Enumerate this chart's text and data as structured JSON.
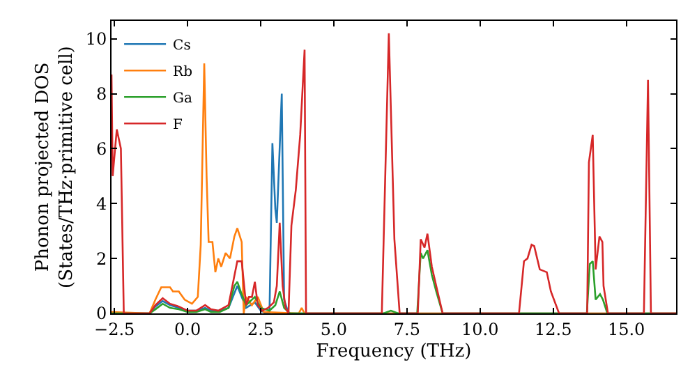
{
  "chart_data": {
    "type": "line",
    "xlabel": "Frequency (THz)",
    "ylabel": "Phonon projected DOS\n(States/THz·primitive cell)",
    "xlim": [
      -2.6,
      16.7
    ],
    "ylim": [
      0,
      10.65
    ],
    "xticks": [
      {
        "value": -2.5,
        "label": "−2.5"
      },
      {
        "value": 0,
        "label": "0.0"
      },
      {
        "value": 2.5,
        "label": "2.5"
      },
      {
        "value": 5,
        "label": "5.0"
      },
      {
        "value": 7.5,
        "label": "7.5"
      },
      {
        "value": 10,
        "label": "10.0"
      },
      {
        "value": 12.5,
        "label": "12.5"
      },
      {
        "value": 15,
        "label": "15.0"
      }
    ],
    "yticks": [
      0,
      2,
      4,
      6,
      8,
      10
    ],
    "grid": false,
    "legend": "top left",
    "marker": "none",
    "line_style": "solid",
    "series": [
      {
        "name": "Cs",
        "color": "#1f77b4",
        "x": [
          -2.6,
          -1.3,
          -1.1,
          -0.85,
          -0.6,
          -0.3,
          0.0,
          0.3,
          0.6,
          0.8,
          1.1,
          1.4,
          1.7,
          1.85,
          2.0,
          2.3,
          2.5,
          2.7,
          2.8,
          2.9,
          3.0,
          3.05,
          3.22,
          3.3,
          3.45,
          16.7
        ],
        "values": [
          0,
          0,
          0.25,
          0.45,
          0.3,
          0.2,
          0.1,
          0.1,
          0.2,
          0.1,
          0.1,
          0.2,
          1.0,
          0.6,
          0.2,
          0.4,
          0.1,
          0,
          0,
          6.2,
          3.8,
          3.3,
          8.0,
          0.5,
          0,
          0
        ]
      },
      {
        "name": "Rb",
        "color": "#ff7f0e",
        "x": [
          -2.6,
          -1.3,
          -1.1,
          -0.9,
          -0.6,
          -0.5,
          -0.3,
          -0.1,
          0.15,
          0.35,
          0.45,
          0.57,
          0.65,
          0.72,
          0.85,
          0.95,
          1.05,
          1.15,
          1.3,
          1.45,
          1.6,
          1.7,
          1.85,
          1.92,
          2.0,
          2.2,
          2.4,
          2.6,
          3.8,
          3.9,
          4.0,
          16.7
        ],
        "values": [
          0.05,
          0,
          0.5,
          0.95,
          0.95,
          0.8,
          0.8,
          0.5,
          0.35,
          0.6,
          2.5,
          9.1,
          5.0,
          2.6,
          2.6,
          1.5,
          2.0,
          1.7,
          2.2,
          2.0,
          2.8,
          3.1,
          2.6,
          0,
          0.6,
          0.3,
          0.6,
          0.05,
          0,
          0.2,
          0,
          0
        ]
      },
      {
        "name": "Ga",
        "color": "#2ca02c",
        "x": [
          -2.6,
          -1.3,
          -1.1,
          -0.85,
          -0.6,
          -0.3,
          0.0,
          0.3,
          0.6,
          0.8,
          1.1,
          1.4,
          1.6,
          1.7,
          1.85,
          2.0,
          2.3,
          2.5,
          2.8,
          3.0,
          3.15,
          3.3,
          3.5,
          6.7,
          6.95,
          7.2,
          7.85,
          7.97,
          8.05,
          8.2,
          8.35,
          8.5,
          8.72,
          13.65,
          13.75,
          13.85,
          13.95,
          14.1,
          14.2,
          14.35,
          16.7
        ],
        "values": [
          0,
          0,
          0.15,
          0.35,
          0.2,
          0.15,
          0.05,
          0.05,
          0.15,
          0.05,
          0.05,
          0.2,
          1.0,
          1.15,
          0.7,
          0.3,
          0.6,
          0.2,
          0.1,
          0.3,
          0.8,
          0.2,
          0,
          0,
          0.1,
          0,
          0,
          2.2,
          2.0,
          2.3,
          1.4,
          0.8,
          0,
          0,
          1.8,
          1.9,
          0.5,
          0.7,
          0.5,
          0,
          0
        ]
      },
      {
        "name": "F",
        "color": "#d62728",
        "x": [
          -2.6,
          -2.56,
          -2.42,
          -2.28,
          -2.18,
          -1.3,
          -1.1,
          -0.85,
          -0.6,
          -0.3,
          0.0,
          0.3,
          0.6,
          0.8,
          1.05,
          1.4,
          1.7,
          1.85,
          2.0,
          2.1,
          2.2,
          2.3,
          2.4,
          2.55,
          2.75,
          2.95,
          3.05,
          3.15,
          3.25,
          3.35,
          3.45,
          3.55,
          3.7,
          3.85,
          4.0,
          4.05,
          6.64,
          6.88,
          7.07,
          7.25,
          7.87,
          7.97,
          8.1,
          8.2,
          8.35,
          8.5,
          8.72,
          11.33,
          11.5,
          11.62,
          11.76,
          11.85,
          12.04,
          12.28,
          12.42,
          12.7,
          13.66,
          13.72,
          13.85,
          13.95,
          14.08,
          14.18,
          14.22,
          14.37,
          15.6,
          15.74,
          15.84,
          16.7
        ],
        "values": [
          8.7,
          5.0,
          6.7,
          6.0,
          0,
          0,
          0.3,
          0.55,
          0.35,
          0.25,
          0.1,
          0.1,
          0.3,
          0.15,
          0.1,
          0.3,
          1.9,
          1.9,
          0.3,
          0.6,
          0.6,
          1.15,
          0.3,
          0.1,
          0.2,
          0.4,
          1.0,
          3.3,
          1.0,
          0.2,
          0,
          3.2,
          4.5,
          6.5,
          9.6,
          0,
          0,
          10.2,
          2.7,
          0,
          0,
          2.7,
          2.4,
          2.9,
          1.7,
          1.0,
          0,
          0,
          1.9,
          2.0,
          2.5,
          2.45,
          1.6,
          1.5,
          0.8,
          0,
          0,
          5.5,
          6.5,
          1.6,
          2.8,
          2.6,
          1.0,
          0,
          0,
          8.5,
          0,
          0
        ]
      }
    ]
  }
}
